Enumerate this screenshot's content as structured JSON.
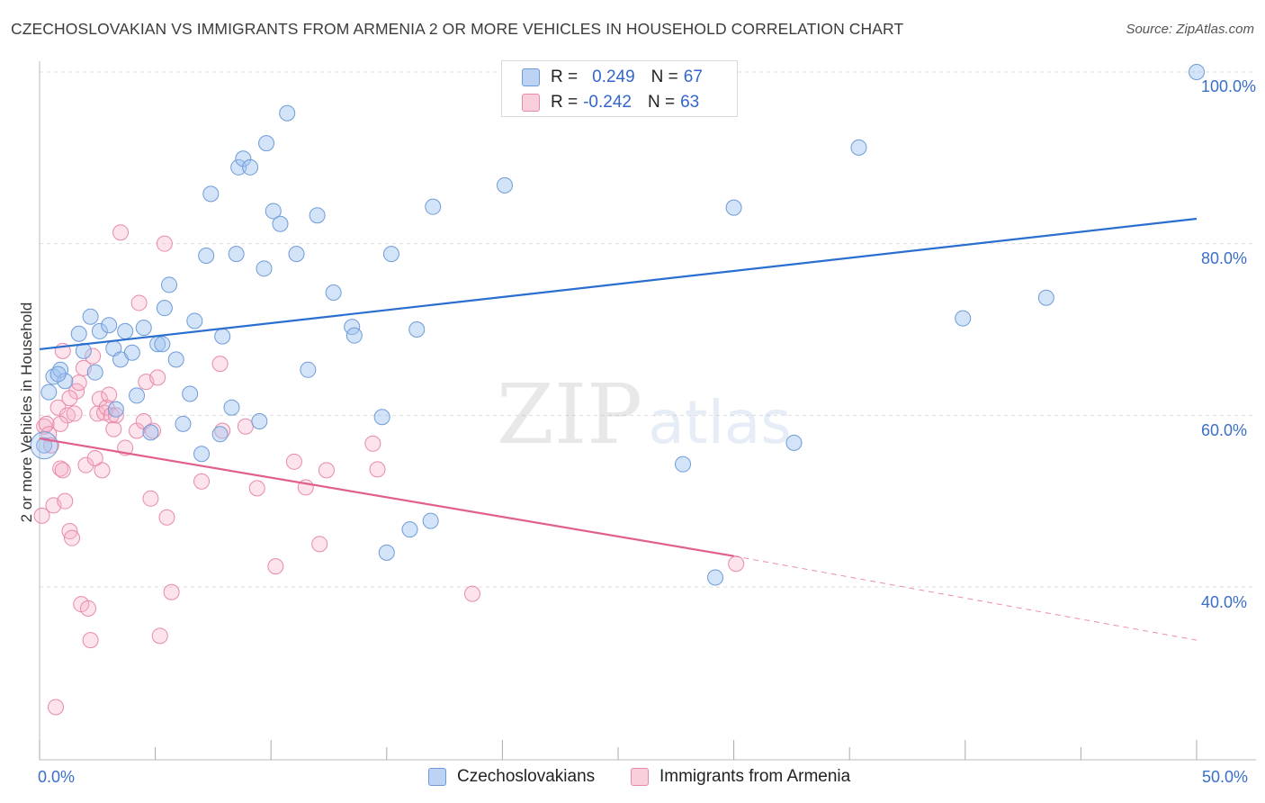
{
  "header": {
    "title": "CZECHOSLOVAKIAN VS IMMIGRANTS FROM ARMENIA 2 OR MORE VEHICLES IN HOUSEHOLD CORRELATION CHART",
    "source": "Source: ZipAtlas.com"
  },
  "watermark": {
    "zip": "ZIP",
    "atlas": "atlas"
  },
  "legend": {
    "rows": [
      {
        "r_label": "R =",
        "r_value": "0.249",
        "n_label": "N =",
        "n_value": "67",
        "color": "#a9c7f0"
      },
      {
        "r_label": "R =",
        "r_value": "-0.242",
        "n_label": "N =",
        "n_value": "63",
        "color": "#f5b5c8"
      }
    ]
  },
  "bottom_legend": {
    "items": [
      {
        "label": "Czechoslovakians",
        "color": "#a9c7f0"
      },
      {
        "label": "Immigrants from Armenia",
        "color": "#f5b5c8"
      }
    ]
  },
  "axes": {
    "ylabel": "2 or more Vehicles in Household",
    "x_min_label": "0.0%",
    "x_max_label": "50.0%",
    "y_tick_labels": [
      "100.0%",
      "80.0%",
      "60.0%",
      "40.0%"
    ]
  },
  "colors": {
    "blue_point_fill": "rgba(160,195,240,0.45)",
    "blue_point_stroke": "#6f9bd8",
    "pink_point_fill": "rgba(245,175,200,0.35)",
    "pink_point_stroke": "#e88aaa",
    "blue_line": "#2a6fd0",
    "pink_line": "#e05f8e",
    "axis_text": "#3a6fc8"
  },
  "chart_data": {
    "type": "scatter",
    "x_range": [
      0,
      50
    ],
    "y_range": [
      20,
      100
    ],
    "x_unit": "%",
    "y_unit": "%",
    "grid": true,
    "legend_position": "top-center",
    "series": [
      {
        "name": "Czechoslovakians",
        "R": 0.249,
        "N": 67,
        "trend": {
          "x": [
            0,
            50
          ],
          "y": [
            67.7,
            82.9
          ]
        },
        "points": [
          [
            0.4,
            62.7
          ],
          [
            0.6,
            64.5
          ],
          [
            0.9,
            65.3
          ],
          [
            1.1,
            64.0
          ],
          [
            0.8,
            64.8
          ],
          [
            1.7,
            69.5
          ],
          [
            1.9,
            67.5
          ],
          [
            2.2,
            71.5
          ],
          [
            2.4,
            65.0
          ],
          [
            2.6,
            69.8
          ],
          [
            3.0,
            70.5
          ],
          [
            3.2,
            67.8
          ],
          [
            3.7,
            69.8
          ],
          [
            3.5,
            66.5
          ],
          [
            4.0,
            67.3
          ],
          [
            4.2,
            62.3
          ],
          [
            4.5,
            70.2
          ],
          [
            4.8,
            58.0
          ],
          [
            5.1,
            68.3
          ],
          [
            5.3,
            68.3
          ],
          [
            5.4,
            72.5
          ],
          [
            5.6,
            75.2
          ],
          [
            5.9,
            66.5
          ],
          [
            6.2,
            59.0
          ],
          [
            6.5,
            62.5
          ],
          [
            6.7,
            71.0
          ],
          [
            7.0,
            55.5
          ],
          [
            7.2,
            78.6
          ],
          [
            7.4,
            85.8
          ],
          [
            7.8,
            57.8
          ],
          [
            7.9,
            69.2
          ],
          [
            8.3,
            60.9
          ],
          [
            8.5,
            78.8
          ],
          [
            8.6,
            88.9
          ],
          [
            8.8,
            89.9
          ],
          [
            9.1,
            88.9
          ],
          [
            9.5,
            59.3
          ],
          [
            9.7,
            77.1
          ],
          [
            9.8,
            91.7
          ],
          [
            10.1,
            83.8
          ],
          [
            10.4,
            82.3
          ],
          [
            10.7,
            95.2
          ],
          [
            11.1,
            78.8
          ],
          [
            11.6,
            65.3
          ],
          [
            12.0,
            83.3
          ],
          [
            12.7,
            74.3
          ],
          [
            13.5,
            70.3
          ],
          [
            13.6,
            69.3
          ],
          [
            15.0,
            44.0
          ],
          [
            14.8,
            59.8
          ],
          [
            15.2,
            78.8
          ],
          [
            16.0,
            46.7
          ],
          [
            16.3,
            70.0
          ],
          [
            16.9,
            47.7
          ],
          [
            17.0,
            84.3
          ],
          [
            20.1,
            86.8
          ],
          [
            25.1,
            99.9
          ],
          [
            27.8,
            54.3
          ],
          [
            29.2,
            41.1
          ],
          [
            30.0,
            84.2
          ],
          [
            32.6,
            56.8
          ],
          [
            35.4,
            91.2
          ],
          [
            39.9,
            71.3
          ],
          [
            43.5,
            73.7
          ],
          [
            50.0,
            100.0
          ],
          [
            0.2,
            56.5
          ],
          [
            3.3,
            60.7
          ]
        ]
      },
      {
        "name": "Immigrants from Armenia",
        "R": -0.242,
        "N": 63,
        "trend": {
          "x": [
            0,
            30
          ],
          "y": [
            57.3,
            43.6
          ],
          "dashed_to": {
            "x": 50,
            "y": 33.8
          }
        },
        "points": [
          [
            0.1,
            48.3
          ],
          [
            0.2,
            58.7
          ],
          [
            0.3,
            59.0
          ],
          [
            0.4,
            57.8
          ],
          [
            0.5,
            56.5
          ],
          [
            0.6,
            49.5
          ],
          [
            0.7,
            26.0
          ],
          [
            0.8,
            60.9
          ],
          [
            0.9,
            53.8
          ],
          [
            1.0,
            53.6
          ],
          [
            1.0,
            67.5
          ],
          [
            1.1,
            50.0
          ],
          [
            1.2,
            60.0
          ],
          [
            1.3,
            46.5
          ],
          [
            1.4,
            45.7
          ],
          [
            1.6,
            62.8
          ],
          [
            1.7,
            63.8
          ],
          [
            1.8,
            38.0
          ],
          [
            1.9,
            65.5
          ],
          [
            2.0,
            54.2
          ],
          [
            2.1,
            37.5
          ],
          [
            2.2,
            33.8
          ],
          [
            2.3,
            66.9
          ],
          [
            2.5,
            60.2
          ],
          [
            2.6,
            61.9
          ],
          [
            2.7,
            53.6
          ],
          [
            2.8,
            60.3
          ],
          [
            2.9,
            60.9
          ],
          [
            3.0,
            62.4
          ],
          [
            3.1,
            60.0
          ],
          [
            3.2,
            58.4
          ],
          [
            3.3,
            60.0
          ],
          [
            3.5,
            81.3
          ],
          [
            3.7,
            56.2
          ],
          [
            4.2,
            58.2
          ],
          [
            4.3,
            73.1
          ],
          [
            4.5,
            59.3
          ],
          [
            4.8,
            50.3
          ],
          [
            4.9,
            58.2
          ],
          [
            5.2,
            34.3
          ],
          [
            5.4,
            80.0
          ],
          [
            5.5,
            48.1
          ],
          [
            5.7,
            39.4
          ],
          [
            7.0,
            52.3
          ],
          [
            7.8,
            66.0
          ],
          [
            7.9,
            58.2
          ],
          [
            9.4,
            51.5
          ],
          [
            10.2,
            42.4
          ],
          [
            11.0,
            54.6
          ],
          [
            11.5,
            51.6
          ],
          [
            12.1,
            45.0
          ],
          [
            12.4,
            53.6
          ],
          [
            14.4,
            56.7
          ],
          [
            14.6,
            53.7
          ],
          [
            18.7,
            39.2
          ],
          [
            30.1,
            42.7
          ],
          [
            1.5,
            60.2
          ],
          [
            2.4,
            55.0
          ],
          [
            4.6,
            63.9
          ],
          [
            5.1,
            64.4
          ],
          [
            0.9,
            59.0
          ],
          [
            1.3,
            62.0
          ],
          [
            8.9,
            58.7
          ]
        ]
      }
    ]
  }
}
